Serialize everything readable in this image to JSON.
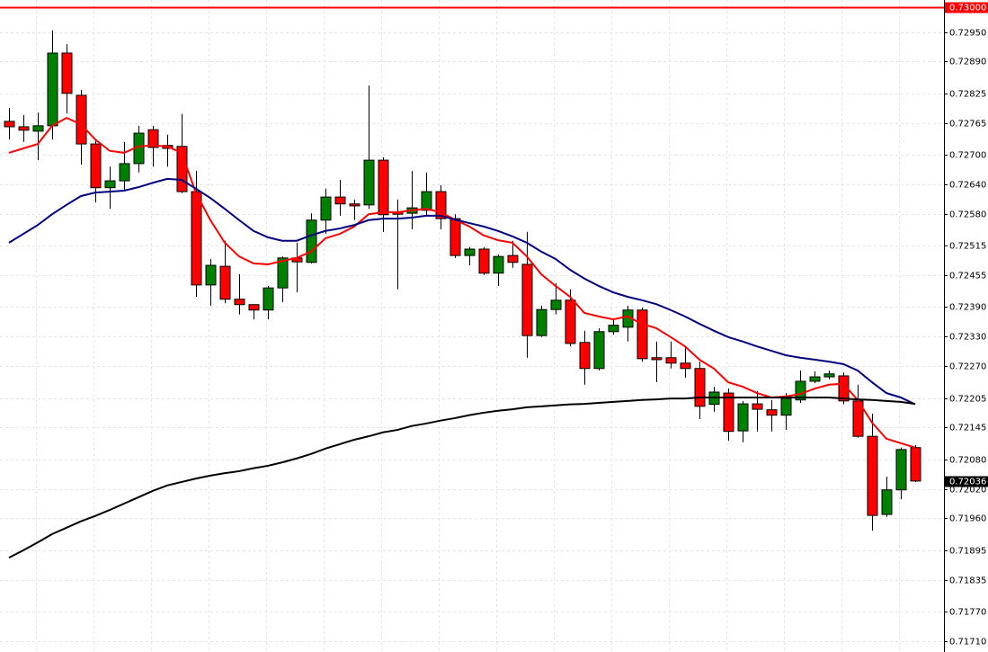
{
  "chart_data": {
    "type": "candlestick",
    "open": [
      0.72768,
      0.72757,
      0.72748,
      0.72759,
      0.72907,
      0.72821,
      0.72722,
      0.72633,
      0.72647,
      0.72682,
      0.72751,
      0.72719,
      0.72717,
      0.72625,
      0.72435,
      0.72473,
      0.72406,
      0.72395,
      0.72384,
      0.72429,
      0.7249,
      0.72481,
      0.72567,
      0.72614,
      0.726,
      0.72598,
      0.72689,
      0.72583,
      0.72581,
      0.72587,
      0.72625,
      0.7257,
      0.72495,
      0.72508,
      0.72459,
      0.72495,
      0.72477,
      0.72332,
      0.72385,
      0.72404,
      0.72318,
      0.72265,
      0.7234,
      0.72349,
      0.72384,
      0.72287,
      0.72287,
      0.72276,
      0.72265,
      0.72192,
      0.72215,
      0.72138,
      0.72193,
      0.72181,
      0.7217,
      0.72201,
      0.72239,
      0.72248,
      0.7225,
      0.72199,
      0.72127,
      0.71968,
      0.72018,
      0.72104
    ],
    "high": [
      0.72795,
      0.72781,
      0.72786,
      0.72953,
      0.72925,
      0.72832,
      0.72731,
      0.72676,
      0.72726,
      0.72759,
      0.72759,
      0.72741,
      0.72783,
      0.72667,
      0.72488,
      0.72525,
      0.72457,
      0.72396,
      0.72433,
      0.72493,
      0.72521,
      0.72581,
      0.72631,
      0.72649,
      0.72609,
      0.72841,
      0.72695,
      0.72609,
      0.72667,
      0.72664,
      0.72638,
      0.72579,
      0.72512,
      0.72512,
      0.72497,
      0.72525,
      0.72543,
      0.72393,
      0.72439,
      0.72426,
      0.72342,
      0.72347,
      0.72365,
      0.72393,
      0.72389,
      0.7232,
      0.7232,
      0.7231,
      0.72279,
      0.72228,
      0.72224,
      0.72199,
      0.72219,
      0.72201,
      0.72215,
      0.72261,
      0.72259,
      0.72261,
      0.72257,
      0.72232,
      0.72173,
      0.72045,
      0.72104,
      0.72109
    ],
    "low": [
      0.72731,
      0.72726,
      0.72689,
      0.72731,
      0.72784,
      0.7268,
      0.72603,
      0.7259,
      0.72627,
      0.72664,
      0.72676,
      0.72676,
      0.72622,
      0.72411,
      0.72393,
      0.72398,
      0.72375,
      0.72365,
      0.72365,
      0.724,
      0.7242,
      0.72479,
      0.72539,
      0.72576,
      0.72567,
      0.7259,
      0.72543,
      0.72426,
      0.72548,
      0.72576,
      0.72548,
      0.7249,
      0.72475,
      0.72455,
      0.72433,
      0.7247,
      0.72287,
      0.72329,
      0.72375,
      0.7231,
      0.72232,
      0.72261,
      0.72334,
      0.7232,
      0.72279,
      0.72237,
      0.72265,
      0.72246,
      0.72162,
      0.72177,
      0.72118,
      0.72115,
      0.72137,
      0.72137,
      0.7214,
      0.72195,
      0.72235,
      0.72243,
      0.72192,
      0.72124,
      0.71935,
      0.71963,
      0.71999,
      0.72034
    ],
    "close": [
      0.72757,
      0.7275,
      0.72759,
      0.72907,
      0.72825,
      0.72722,
      0.72633,
      0.72647,
      0.72682,
      0.72744,
      0.72715,
      0.72713,
      0.72625,
      0.72435,
      0.72475,
      0.72406,
      0.72395,
      0.72384,
      0.72429,
      0.7249,
      0.72482,
      0.72567,
      0.72614,
      0.726,
      0.72596,
      0.72689,
      0.72578,
      0.72579,
      0.72592,
      0.72625,
      0.7257,
      0.72495,
      0.72508,
      0.72459,
      0.72493,
      0.72481,
      0.72332,
      0.72385,
      0.72404,
      0.72316,
      0.72265,
      0.7234,
      0.72353,
      0.72384,
      0.72285,
      0.72283,
      0.72276,
      0.72265,
      0.72188,
      0.72217,
      0.72137,
      0.72193,
      0.72182,
      0.7217,
      0.72204,
      0.72239,
      0.72248,
      0.72254,
      0.72199,
      0.72127,
      0.71966,
      0.72018,
      0.721,
      0.72036
    ],
    "up_color": "#008000",
    "down_color": "#ff0000",
    "lines": [
      {
        "color": "#ff0000",
        "values": [
          0.72704,
          0.72713,
          0.72722,
          0.72759,
          0.72775,
          0.72762,
          0.72731,
          0.72708,
          0.72704,
          0.72717,
          0.72719,
          0.72717,
          0.72704,
          0.72622,
          0.72567,
          0.72521,
          0.72493,
          0.72479,
          0.72477,
          0.72484,
          0.7249,
          0.72503,
          0.7253,
          0.72539,
          0.72554,
          0.72579,
          0.72583,
          0.72583,
          0.72587,
          0.7259,
          0.72583,
          0.72568,
          0.72554,
          0.72536,
          0.72526,
          0.72521,
          0.72493,
          0.72457,
          0.72433,
          0.72411,
          0.72378,
          0.72371,
          0.72365,
          0.72371,
          0.72356,
          0.72347,
          0.72329,
          0.7231,
          0.72283,
          0.72265,
          0.72237,
          0.72228,
          0.72215,
          0.72206,
          0.72208,
          0.72213,
          0.72224,
          0.72232,
          0.72234,
          0.72201,
          0.72155,
          0.72122,
          0.72113,
          0.72104
        ]
      },
      {
        "color": "#000080",
        "values": [
          0.72521,
          0.72539,
          0.72557,
          0.72579,
          0.72598,
          0.72616,
          0.72623,
          0.72625,
          0.72627,
          0.72634,
          0.72643,
          0.72651,
          0.72649,
          0.72631,
          0.72612,
          0.7259,
          0.72567,
          0.72545,
          0.72532,
          0.72525,
          0.72525,
          0.72536,
          0.72545,
          0.7255,
          0.72557,
          0.72567,
          0.7257,
          0.7257,
          0.72572,
          0.72576,
          0.72576,
          0.72568,
          0.72561,
          0.72554,
          0.72545,
          0.72534,
          0.72521,
          0.72503,
          0.72488,
          0.72466,
          0.72448,
          0.72433,
          0.7242,
          0.72411,
          0.72404,
          0.72396,
          0.72384,
          0.72371,
          0.72356,
          0.72342,
          0.72329,
          0.7232,
          0.7231,
          0.72301,
          0.72292,
          0.72287,
          0.72283,
          0.72279,
          0.72274,
          0.72261,
          0.72237,
          0.72215,
          0.72206,
          0.72192
        ]
      },
      {
        "color": "#000000",
        "values": [
          0.7188,
          0.71895,
          0.71911,
          0.71928,
          0.71941,
          0.71954,
          0.71965,
          0.71977,
          0.7199,
          0.72003,
          0.72016,
          0.72027,
          0.72034,
          0.72041,
          0.72047,
          0.72052,
          0.72056,
          0.72062,
          0.72067,
          0.72074,
          0.72082,
          0.72091,
          0.72102,
          0.72111,
          0.7212,
          0.72127,
          0.72135,
          0.7214,
          0.72148,
          0.72153,
          0.72159,
          0.72164,
          0.7217,
          0.72175,
          0.72179,
          0.72182,
          0.72186,
          0.72188,
          0.7219,
          0.72192,
          0.72193,
          0.72195,
          0.72197,
          0.72199,
          0.72201,
          0.72202,
          0.72204,
          0.72204,
          0.72206,
          0.72206,
          0.72206,
          0.72206,
          0.72206,
          0.72206,
          0.72206,
          0.72206,
          0.72206,
          0.72206,
          0.72204,
          0.72202,
          0.72201,
          0.72199,
          0.72197,
          0.72193
        ]
      }
    ],
    "ylim": [
      0.71688,
      0.73015
    ],
    "yticks": [
      {
        "value": 0.7295,
        "label": "0.72950"
      },
      {
        "value": 0.7289,
        "label": "0.72890"
      },
      0.72825,
      0.72765,
      {
        "value": 0.727,
        "label": "0.72700"
      },
      {
        "value": 0.7264,
        "label": "0.72640"
      },
      {
        "value": 0.7258,
        "label": "0.72580"
      },
      0.72515,
      0.72455,
      {
        "value": 0.7239,
        "label": "0.72390"
      },
      {
        "value": 0.7233,
        "label": "0.72330"
      },
      {
        "value": 0.7227,
        "label": "0.72270"
      },
      0.72205,
      0.72145,
      {
        "value": 0.7208,
        "label": "0.72080"
      },
      {
        "value": 0.7202,
        "label": "0.72020"
      },
      {
        "value": 0.7196,
        "label": "0.71960"
      },
      0.71895,
      0.71835,
      {
        "value": 0.7177,
        "label": "0.71770"
      },
      {
        "value": 0.7171,
        "label": "0.71710"
      }
    ],
    "grid": true,
    "hline": {
      "value": 0.73,
      "label": "0.73000",
      "color": "#ff0000"
    },
    "last_price": {
      "value": 0.72036,
      "label": "0.72036"
    }
  }
}
